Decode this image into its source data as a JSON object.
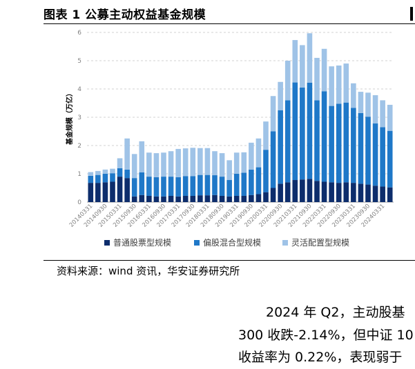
{
  "header": {
    "title": "图表 1 公募主动权益基金规模"
  },
  "source_text": "资料来源：wind 资讯，华安证券研究所",
  "paragraph": {
    "line1": "2024 年 Q2，主动股基",
    "line2": "300 收跌-2.14%，但中证 10",
    "line3": "收益率为 0.22%，表现弱于"
  },
  "colors": {
    "series1": "#0d2d6c",
    "series2": "#1f78c8",
    "series3": "#9fc3e7",
    "axis": "#7f7f7f",
    "grid": "#d0d0d0"
  },
  "chart_data": {
    "type": "bar",
    "stacked": true,
    "ylabel": "基金规模（万亿）",
    "ylim": [
      0,
      6
    ],
    "yticks": [
      0,
      1,
      2,
      3,
      4,
      5,
      6
    ],
    "grid": true,
    "legend_position": "bottom",
    "categories": [
      "20140331",
      "20140630",
      "20140930",
      "20141231",
      "20150331",
      "20150630",
      "20150930",
      "20151231",
      "20160331",
      "20160630",
      "20160930",
      "20161231",
      "20170331",
      "20170630",
      "20170930",
      "20171231",
      "20180331",
      "20180630",
      "20180930",
      "20181231",
      "20190331",
      "20190630",
      "20190930",
      "20191231",
      "20200331",
      "20200630",
      "20200930",
      "20201231",
      "20210331",
      "20210630",
      "20210930",
      "20211231",
      "20220331",
      "20220630",
      "20220930",
      "20221231",
      "20230331",
      "20230630",
      "20230930",
      "20231231",
      "20240331",
      "20240630"
    ],
    "xtick_labels": [
      "20140331",
      "20140930",
      "20150331",
      "20150930",
      "20160331",
      "20160930",
      "20170331",
      "20170930",
      "20180331",
      "20180930",
      "20190331",
      "20190930",
      "20200331",
      "20200930",
      "20210331",
      "20210930",
      "20220331",
      "20220930",
      "20230331",
      "20230930",
      "20240331"
    ],
    "series": [
      {
        "name": "普通股票型规模",
        "values": [
          0.68,
          0.68,
          0.7,
          0.72,
          0.9,
          0.85,
          0.2,
          0.25,
          0.22,
          0.2,
          0.2,
          0.22,
          0.2,
          0.22,
          0.22,
          0.24,
          0.24,
          0.25,
          0.22,
          0.2,
          0.22,
          0.22,
          0.25,
          0.28,
          0.35,
          0.5,
          0.65,
          0.7,
          0.78,
          0.8,
          0.82,
          0.75,
          0.72,
          0.7,
          0.68,
          0.7,
          0.68,
          0.65,
          0.62,
          0.58,
          0.55,
          0.52
        ]
      },
      {
        "name": "偏股混合型规模",
        "values": [
          0.25,
          0.28,
          0.3,
          0.3,
          0.3,
          0.3,
          0.65,
          0.8,
          0.68,
          0.68,
          0.7,
          0.68,
          0.68,
          0.7,
          0.7,
          0.72,
          0.72,
          0.7,
          0.68,
          0.58,
          0.78,
          0.82,
          0.9,
          0.95,
          1.5,
          2.0,
          2.6,
          2.9,
          3.45,
          3.25,
          3.4,
          2.85,
          3.2,
          2.7,
          2.8,
          2.82,
          2.65,
          2.5,
          2.4,
          2.2,
          2.1,
          2.0
        ]
      },
      {
        "name": "灵活配置型规模",
        "values": [
          0.13,
          0.14,
          0.15,
          0.16,
          0.35,
          1.1,
          0.85,
          1.1,
          0.85,
          0.85,
          0.85,
          0.9,
          1.0,
          0.98,
          1.0,
          0.95,
          0.95,
          0.85,
          0.83,
          0.7,
          0.75,
          0.72,
          0.95,
          1.02,
          1.0,
          1.25,
          1.0,
          1.4,
          1.5,
          1.5,
          1.75,
          1.5,
          1.5,
          1.4,
          1.35,
          1.38,
          0.87,
          0.75,
          0.85,
          1.0,
          0.95,
          0.92
        ]
      }
    ]
  }
}
